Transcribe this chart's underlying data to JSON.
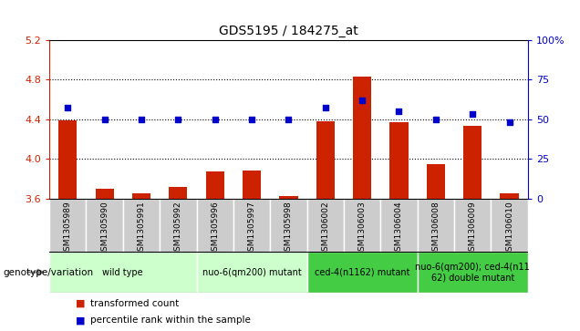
{
  "title": "GDS5195 / 184275_at",
  "samples": [
    "GSM1305989",
    "GSM1305990",
    "GSM1305991",
    "GSM1305992",
    "GSM1305996",
    "GSM1305997",
    "GSM1305998",
    "GSM1306002",
    "GSM1306003",
    "GSM1306004",
    "GSM1306008",
    "GSM1306009",
    "GSM1306010"
  ],
  "bar_values": [
    4.39,
    3.7,
    3.65,
    3.72,
    3.87,
    3.88,
    3.63,
    4.38,
    4.83,
    4.37,
    3.95,
    4.33,
    3.65
  ],
  "percentile_values": [
    57,
    50,
    50,
    50,
    50,
    50,
    50,
    57,
    62,
    55,
    50,
    53,
    48
  ],
  "ylim_left": [
    3.6,
    5.2
  ],
  "ylim_right": [
    0,
    100
  ],
  "yticks_left": [
    3.6,
    4.0,
    4.4,
    4.8,
    5.2
  ],
  "yticks_right": [
    0,
    25,
    50,
    75,
    100
  ],
  "bar_color": "#cc2200",
  "dot_color": "#0000cc",
  "genotype_groups": [
    {
      "label": "wild type",
      "start": 0,
      "end": 3,
      "color": "#ccffcc"
    },
    {
      "label": "nuo-6(qm200) mutant",
      "start": 4,
      "end": 6,
      "color": "#ccffcc"
    },
    {
      "label": "ced-4(n1162) mutant",
      "start": 7,
      "end": 9,
      "color": "#44dd44"
    },
    {
      "label": "nuo-6(qm200); ced-4(n11\n62) double mutant",
      "start": 10,
      "end": 12,
      "color": "#44dd44"
    }
  ],
  "legend_items": [
    {
      "label": "transformed count",
      "color": "#cc2200"
    },
    {
      "label": "percentile rank within the sample",
      "color": "#0000cc"
    }
  ],
  "xlabel_genotype": "genotype/variation",
  "tick_bg_color": "#cccccc",
  "bg_color": "#ffffff",
  "grid_lines": [
    4.0,
    4.4,
    4.8
  ],
  "bar_width": 0.5,
  "dot_size": 18
}
